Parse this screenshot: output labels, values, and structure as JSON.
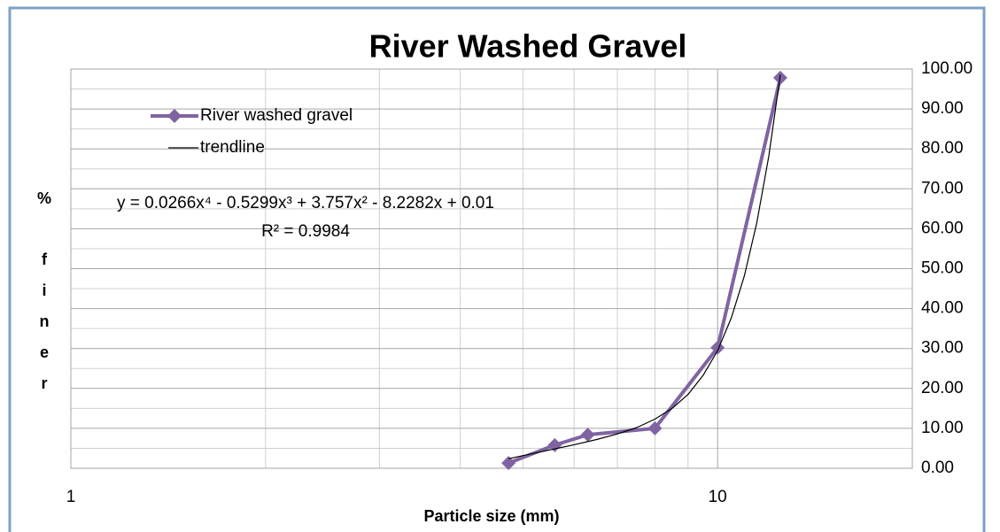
{
  "chart_data": {
    "type": "line",
    "title": "River Washed Gravel",
    "xlabel": "Particle size (mm)",
    "ylabel": "% finer",
    "xscale": "log",
    "xlim": [
      1,
      20
    ],
    "xticks": [
      1,
      10
    ],
    "ylim": [
      0,
      100
    ],
    "yticks": [
      {
        "value": 0,
        "label": "0.00"
      },
      {
        "value": 10,
        "label": "10.00"
      },
      {
        "value": 20,
        "label": "20.00"
      },
      {
        "value": 30,
        "label": "30.00"
      },
      {
        "value": 40,
        "label": "40.00"
      },
      {
        "value": 50,
        "label": "50.00"
      },
      {
        "value": 60,
        "label": "60.00"
      },
      {
        "value": 70,
        "label": "70.00"
      },
      {
        "value": 80,
        "label": "80.00"
      },
      {
        "value": 90,
        "label": "90.00"
      },
      {
        "value": 100,
        "label": "100.00"
      }
    ],
    "yaxis_side": "right",
    "grid": true,
    "series": [
      {
        "name": "River washed gravel",
        "color": "#8064a2",
        "marker": "diamond",
        "x": [
          4.75,
          5.6,
          6.3,
          8,
          10,
          12.5
        ],
        "values": [
          1.3,
          5.8,
          8.4,
          10.0,
          30.2,
          97.8
        ]
      },
      {
        "name": "trendline",
        "color": "#000000",
        "marker": "none",
        "x": [
          4.75,
          5.5,
          6,
          6.5,
          7,
          7.5,
          8,
          8.5,
          9,
          9.5,
          10,
          10.5,
          11,
          11.5,
          12,
          12.5
        ],
        "values": [
          2.4,
          4.6,
          5.9,
          7.2,
          8.6,
          10.2,
          12.3,
          15.0,
          18.5,
          23.3,
          29.5,
          37.7,
          48.2,
          61.6,
          78.2,
          98.6
        ]
      }
    ],
    "annotations": [
      "y = 0.0266x⁴ - 0.5299x³ + 3.757x² - 8.2282x + 0.01",
      "R² = 0.9984"
    ]
  }
}
